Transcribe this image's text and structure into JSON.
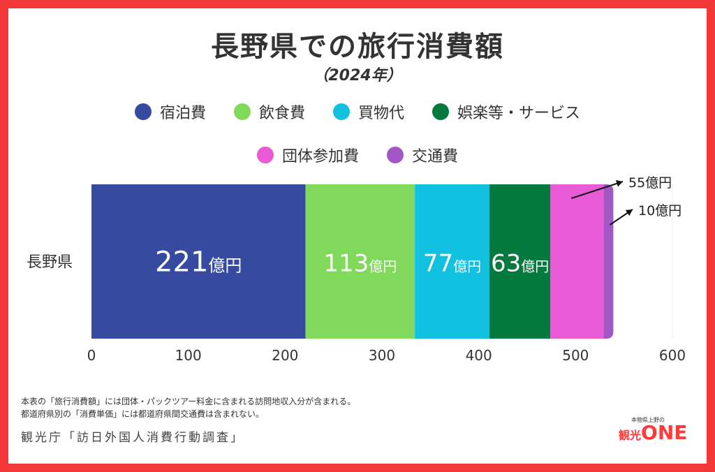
{
  "title": "長野県での旅行消費額",
  "subtitle": "（2024年）",
  "footnotes": [
    "本表の「旅行消費額」には団体・パックツアー料金に含まれる訪問地収入分が含まれる。",
    "都道府県別の「消費単価」には都道府県間交通費は含まれない。"
  ],
  "source": "観光庁「訪日外国人消費行動調査」",
  "logo": {
    "small_text": "本物県上野の",
    "kanko": "観光",
    "one": "ONE"
  },
  "colors": {
    "frame": "#f23838",
    "宿泊費": "#364b9f",
    "飲食費": "#80d95b",
    "買物代": "#12c0e0",
    "娯楽等・サービス": "#057a3f",
    "団体参加費": "#e85ad6",
    "交通費": "#a356c6"
  },
  "chart_data": {
    "type": "bar",
    "orientation": "horizontal",
    "stacked": true,
    "title": "長野県での旅行消費額",
    "subtitle": "（2024年）",
    "categories": [
      "長野県"
    ],
    "unit": "億円",
    "xlim": [
      0,
      600
    ],
    "xticks": [
      0,
      100,
      200,
      300,
      400,
      500,
      600
    ],
    "grid": false,
    "legend_position": "top",
    "series": [
      {
        "name": "宿泊費",
        "values": [
          221
        ],
        "color": "#364b9f",
        "label": "221",
        "label_unit": "億円"
      },
      {
        "name": "飲食費",
        "values": [
          113
        ],
        "color": "#80d95b",
        "label": "113",
        "label_unit": "億円"
      },
      {
        "name": "買物代",
        "values": [
          77
        ],
        "color": "#12c0e0",
        "label": "77",
        "label_unit": "億円"
      },
      {
        "name": "娯楽等・サービス",
        "values": [
          63
        ],
        "color": "#057a3f",
        "label": "63",
        "label_unit": "億円"
      },
      {
        "name": "団体参加費",
        "values": [
          55
        ],
        "color": "#e85ad6",
        "label": "55億円"
      },
      {
        "name": "交通費",
        "values": [
          10
        ],
        "color": "#a356c6",
        "label": "10億円"
      }
    ]
  }
}
